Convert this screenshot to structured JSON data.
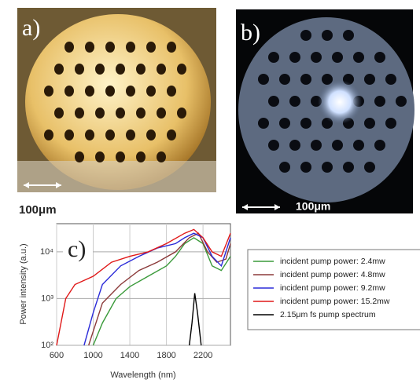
{
  "panels": {
    "a": {
      "label": "a)",
      "scale": "100μm"
    },
    "b": {
      "label": "b)",
      "scale": "100μm"
    },
    "c": {
      "label": "c)"
    }
  },
  "chart_data": {
    "type": "line",
    "log_y": true,
    "grid": true,
    "xlabel": "Wavelength (nm)",
    "ylabel": "Power intensity (a.u.)",
    "xlim": [
      600,
      2500
    ],
    "xticks": [
      600,
      1000,
      1400,
      1800,
      2200
    ],
    "ylim": [
      100,
      40000
    ],
    "yticks": [
      {
        "value": 100,
        "label": "10²"
      },
      {
        "value": 1000,
        "label": "10³"
      },
      {
        "value": 10000,
        "label": "10⁴"
      }
    ],
    "legend": "right",
    "series": [
      {
        "name": "incident pump power:  2.4mw",
        "color": "#3a9a3a",
        "x": [
          1000,
          1100,
          1250,
          1400,
          1600,
          1800,
          1900,
          2000,
          2100,
          2200,
          2300,
          2400,
          2500
        ],
        "values": [
          100,
          300,
          1000,
          1800,
          3000,
          5000,
          8000,
          15000,
          20000,
          15000,
          5000,
          4000,
          8000
        ]
      },
      {
        "name": "incident pump power:  4.8mw",
        "color": "#8b3a3a",
        "x": [
          950,
          1100,
          1300,
          1500,
          1700,
          1900,
          2050,
          2150,
          2250,
          2350,
          2450,
          2500
        ],
        "values": [
          100,
          800,
          2000,
          4000,
          6000,
          10000,
          20000,
          25000,
          10000,
          6000,
          7000,
          15000
        ]
      },
      {
        "name": "incident pump power:  9.2mw",
        "color": "#2b2bd9",
        "x": [
          900,
          1000,
          1100,
          1300,
          1500,
          1700,
          1900,
          2000,
          2100,
          2200,
          2300,
          2400,
          2500
        ],
        "values": [
          100,
          500,
          2000,
          5000,
          8000,
          12000,
          15000,
          20000,
          25000,
          20000,
          8000,
          5000,
          20000
        ]
      },
      {
        "name": "incident pump power: 15.2mw",
        "color": "#e01818",
        "x": [
          600,
          700,
          800,
          1000,
          1200,
          1400,
          1600,
          1800,
          2000,
          2100,
          2200,
          2300,
          2400,
          2500
        ],
        "values": [
          100,
          1000,
          2000,
          3000,
          6000,
          8000,
          10000,
          15000,
          25000,
          30000,
          20000,
          10000,
          8000,
          25000
        ]
      },
      {
        "name": "2.15μm fs pump spectrum",
        "color": "#000000",
        "x": [
          2050,
          2080,
          2110,
          2140,
          2180
        ],
        "values": [
          100,
          300,
          1300,
          500,
          100
        ]
      }
    ]
  }
}
